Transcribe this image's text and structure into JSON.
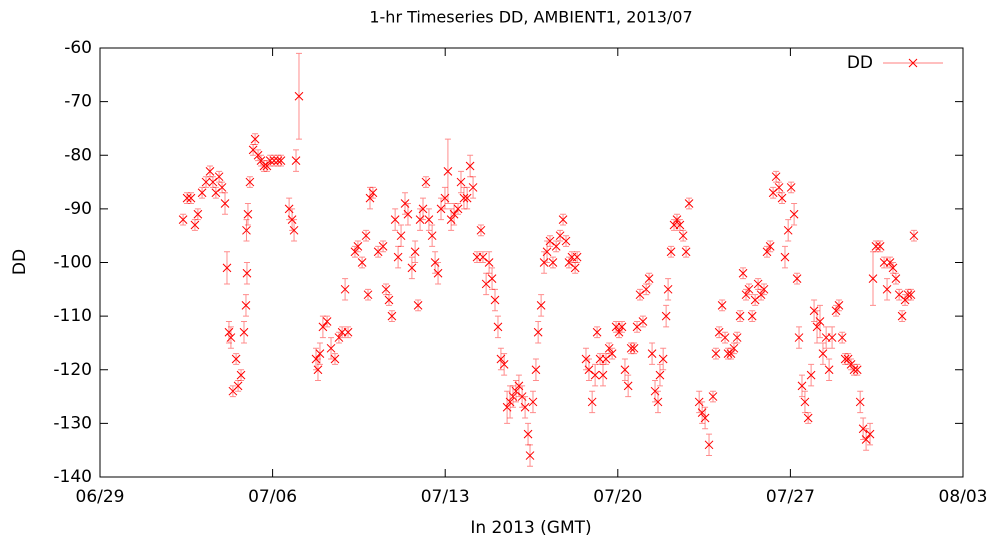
{
  "chart_data": {
    "type": "scatter",
    "title": "1-hr Timeseries DD, AMBIENT1, 2013/07",
    "x_label": "In 2013 (GMT)",
    "y_label": "DD",
    "xlim": [
      0,
      35
    ],
    "xticks": [
      {
        "value": 0,
        "label": "06/29"
      },
      {
        "value": 7,
        "label": "07/06"
      },
      {
        "value": 14,
        "label": "07/13"
      },
      {
        "value": 21,
        "label": "07/20"
      },
      {
        "value": 28,
        "label": "07/27"
      },
      {
        "value": 35,
        "label": "08/03"
      }
    ],
    "ylim": [
      -140,
      -60
    ],
    "yticks": [
      -140,
      -130,
      -120,
      -110,
      -100,
      -90,
      -80,
      -70,
      -60
    ],
    "grid": false,
    "legend": "top-right",
    "series": [
      {
        "name": "DD",
        "color": "#ff0000",
        "x": [
          3.37,
          3.53,
          3.69,
          3.85,
          3.97,
          4.14,
          4.3,
          4.46,
          4.58,
          4.7,
          4.83,
          4.95,
          5.07,
          5.15,
          5.23,
          5.31,
          5.39,
          5.52,
          5.6,
          5.72,
          5.84,
          5.92,
          5.94,
          5.96,
          6.0,
          6.08,
          6.21,
          6.29,
          6.41,
          6.53,
          6.65,
          6.77,
          6.9,
          7.06,
          7.22,
          7.34,
          7.67,
          7.79,
          7.87,
          7.95,
          8.07,
          8.76,
          8.84,
          8.92,
          9.04,
          9.21,
          9.37,
          9.53,
          9.69,
          9.82,
          9.94,
          10.06,
          10.34,
          10.46,
          10.63,
          10.79,
          10.87,
          10.95,
          11.07,
          11.28,
          11.48,
          11.6,
          11.72,
          11.84,
          11.97,
          12.09,
          12.21,
          12.37,
          12.49,
          12.65,
          12.78,
          12.9,
          12.98,
          13.1,
          13.22,
          13.34,
          13.47,
          13.59,
          13.71,
          13.83,
          13.99,
          14.11,
          14.24,
          14.36,
          14.52,
          14.64,
          14.76,
          14.89,
          15.01,
          15.13,
          15.29,
          15.45,
          15.53,
          15.66,
          15.78,
          15.9,
          16.02,
          16.14,
          16.26,
          16.39,
          16.51,
          16.63,
          16.75,
          16.87,
          16.99,
          17.12,
          17.24,
          17.36,
          17.44,
          17.56,
          17.68,
          17.77,
          17.89,
          18.01,
          18.13,
          18.25,
          18.37,
          18.5,
          18.66,
          18.78,
          18.9,
          19.02,
          19.14,
          19.27,
          19.35,
          19.71,
          19.83,
          19.96,
          20.08,
          20.16,
          20.28,
          20.4,
          20.52,
          20.65,
          20.77,
          20.93,
          21.05,
          21.17,
          21.29,
          21.42,
          21.54,
          21.66,
          21.78,
          21.9,
          22.02,
          22.15,
          22.27,
          22.39,
          22.51,
          22.63,
          22.71,
          22.84,
          22.96,
          23.04,
          23.16,
          23.28,
          23.4,
          23.52,
          23.65,
          23.77,
          23.89,
          24.3,
          24.42,
          24.54,
          24.7,
          24.86,
          24.98,
          25.11,
          25.23,
          25.35,
          25.47,
          25.59,
          25.71,
          25.84,
          25.96,
          26.08,
          26.2,
          26.32,
          26.45,
          26.57,
          26.69,
          26.81,
          26.93,
          27.05,
          27.18,
          27.3,
          27.42,
          27.54,
          27.66,
          27.78,
          27.91,
          28.03,
          28.15,
          28.27,
          28.35,
          28.47,
          28.59,
          28.72,
          28.84,
          28.96,
          29.08,
          29.2,
          29.32,
          29.45,
          29.57,
          29.69,
          29.85,
          29.97,
          30.1,
          30.22,
          30.34,
          30.46,
          30.58,
          30.71,
          30.83,
          30.95,
          31.07,
          31.23,
          31.35,
          31.47,
          31.64,
          31.8,
          31.92,
          32.04,
          32.16,
          32.28,
          32.41,
          32.53,
          32.65,
          32.77,
          32.89,
          33.01
        ],
        "values": [
          -92,
          -88,
          -88,
          -93,
          -91,
          -87,
          -85,
          -83,
          -85,
          -87,
          -84,
          -86,
          -89,
          -101,
          -113,
          -114,
          -124,
          -118,
          -123,
          -121,
          -113,
          -108,
          -94,
          -102,
          -91,
          -85,
          -79,
          -77,
          -80,
          -81,
          -82,
          -82,
          -81,
          -81,
          -81,
          -81,
          -90,
          -92,
          -94,
          -81,
          -69,
          -118,
          -120,
          -117,
          -112,
          -111,
          -116,
          -118,
          -114,
          -113,
          -105,
          -113,
          -98,
          -97,
          -100,
          -95,
          -106,
          -88,
          -87,
          -98,
          -97,
          -105,
          -107,
          -110,
          -92,
          -99,
          -95,
          -89,
          -91,
          -101,
          -98,
          -108,
          -92,
          -90,
          -85,
          -92,
          -95,
          -100,
          -102,
          -90,
          -88,
          -83,
          -92,
          -91,
          -90,
          -85,
          -88,
          -88,
          -82,
          -86,
          -99,
          -94,
          -99,
          -104,
          -100,
          -103,
          -107,
          -112,
          -118,
          -119,
          -127,
          -126,
          -125,
          -124,
          -123,
          -125,
          -127,
          -132,
          -136,
          -126,
          -120,
          -113,
          -108,
          -100,
          -98,
          -96,
          -100,
          -97,
          -95,
          -92,
          -96,
          -100,
          -99,
          -101,
          -99,
          -118,
          -120,
          -126,
          -121,
          -113,
          -118,
          -121,
          -118,
          -116,
          -117,
          -112,
          -113,
          -112,
          -120,
          -123,
          -116,
          -116,
          -112,
          -106,
          -111,
          -105,
          -103,
          -117,
          -124,
          -126,
          -121,
          -118,
          -110,
          -105,
          -98,
          -93,
          -92,
          -93,
          -95,
          -98,
          -89,
          -126,
          -128,
          -129,
          -134,
          -125,
          -117,
          -113,
          -108,
          -114,
          -117,
          -117,
          -116,
          -114,
          -110,
          -102,
          -106,
          -105,
          -110,
          -107,
          -104,
          -106,
          -105,
          -98,
          -97,
          -87,
          -84,
          -86,
          -88,
          -99,
          -94,
          -86,
          -91,
          -103,
          -114,
          -123,
          -126,
          -129,
          -121,
          -109,
          -112,
          -111,
          -117,
          -114,
          -120,
          -114,
          -109,
          -108,
          -114,
          -118,
          -118,
          -119,
          -120,
          -120,
          -126,
          -131,
          -133,
          -132,
          -103,
          -97,
          -97,
          -100,
          -105,
          -100,
          -101,
          -103,
          -106,
          -110,
          -107,
          -106,
          -106,
          -95
        ],
        "errors": [
          1,
          1,
          1,
          1,
          1,
          1,
          1,
          1,
          1,
          1,
          1,
          1,
          2,
          3,
          2,
          2,
          1,
          1,
          1,
          1,
          2,
          2,
          2,
          2,
          2,
          1,
          1,
          1,
          1,
          1,
          1,
          1,
          1,
          1,
          1,
          1,
          2,
          2,
          2,
          2,
          8,
          2,
          2,
          2,
          2,
          1,
          2,
          1,
          1,
          1,
          2,
          1,
          1,
          1,
          1,
          1,
          1,
          2,
          1,
          1,
          1,
          1,
          1,
          1,
          2,
          2,
          2,
          2,
          2,
          2,
          2,
          1,
          2,
          2,
          1,
          2,
          2,
          2,
          2,
          2,
          2,
          6,
          2,
          2,
          1,
          2,
          2,
          2,
          2,
          2,
          1,
          1,
          1,
          2,
          2,
          2,
          2,
          2,
          2,
          2,
          3,
          3,
          2,
          2,
          2,
          2,
          2,
          2,
          2,
          2,
          2,
          2,
          2,
          2,
          2,
          1,
          1,
          1,
          1,
          1,
          1,
          1,
          1,
          1,
          1,
          2,
          2,
          2,
          2,
          1,
          1,
          2,
          1,
          1,
          1,
          1,
          1,
          1,
          2,
          2,
          1,
          1,
          1,
          1,
          1,
          1,
          1,
          2,
          2,
          2,
          2,
          2,
          2,
          2,
          1,
          1,
          1,
          1,
          1,
          1,
          1,
          2,
          2,
          2,
          2,
          1,
          1,
          1,
          1,
          1,
          1,
          1,
          1,
          1,
          1,
          1,
          1,
          1,
          1,
          1,
          1,
          1,
          1,
          1,
          1,
          1,
          1,
          1,
          1,
          2,
          2,
          1,
          2,
          1,
          2,
          2,
          2,
          1,
          2,
          2,
          3,
          3,
          2,
          2,
          2,
          2,
          1,
          1,
          1,
          1,
          1,
          1,
          1,
          1,
          2,
          2,
          2,
          2,
          5,
          1,
          1,
          1,
          2,
          1,
          1,
          1,
          1,
          1,
          1,
          1,
          1,
          1
        ]
      }
    ]
  }
}
